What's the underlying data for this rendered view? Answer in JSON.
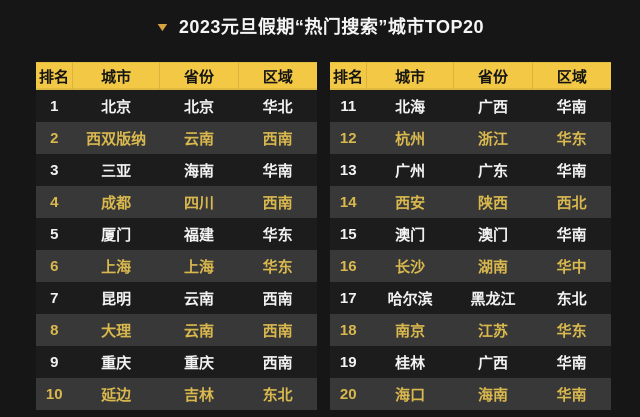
{
  "title": {
    "marker_icon": "▼",
    "text": "2023元旦假期“热门搜索”城市TOP20"
  },
  "colors": {
    "page_bg": "#161616",
    "header_bg": "#f2c844",
    "header_text": "#141414",
    "row_bg": "#1c1c1c",
    "row_text": "#f2f2f2",
    "highlight_row_bg": "#383838",
    "highlight_text": "#d9b84e",
    "marker_color": "#d6a340"
  },
  "chart_data": {
    "type": "table",
    "title": "2023元旦假期“热门搜索”城市TOP20",
    "columns": [
      "排名",
      "城市",
      "省份",
      "区域"
    ],
    "layout": "two side-by-side tables: ranks 1-10 left, ranks 11-20 right; even ranks highlighted in gold",
    "rows": [
      [
        "1",
        "北京",
        "北京",
        "华北"
      ],
      [
        "2",
        "西双版纳",
        "云南",
        "西南"
      ],
      [
        "3",
        "三亚",
        "海南",
        "华南"
      ],
      [
        "4",
        "成都",
        "四川",
        "西南"
      ],
      [
        "5",
        "厦门",
        "福建",
        "华东"
      ],
      [
        "6",
        "上海",
        "上海",
        "华东"
      ],
      [
        "7",
        "昆明",
        "云南",
        "西南"
      ],
      [
        "8",
        "大理",
        "云南",
        "西南"
      ],
      [
        "9",
        "重庆",
        "重庆",
        "西南"
      ],
      [
        "10",
        "延边",
        "吉林",
        "东北"
      ],
      [
        "11",
        "北海",
        "广西",
        "华南"
      ],
      [
        "12",
        "杭州",
        "浙江",
        "华东"
      ],
      [
        "13",
        "广州",
        "广东",
        "华南"
      ],
      [
        "14",
        "西安",
        "陕西",
        "西北"
      ],
      [
        "15",
        "澳门",
        "澳门",
        "华南"
      ],
      [
        "16",
        "长沙",
        "湖南",
        "华中"
      ],
      [
        "17",
        "哈尔滨",
        "黑龙江",
        "东北"
      ],
      [
        "18",
        "南京",
        "江苏",
        "华东"
      ],
      [
        "19",
        "桂林",
        "广西",
        "华南"
      ],
      [
        "20",
        "海口",
        "海南",
        "华南"
      ]
    ]
  }
}
